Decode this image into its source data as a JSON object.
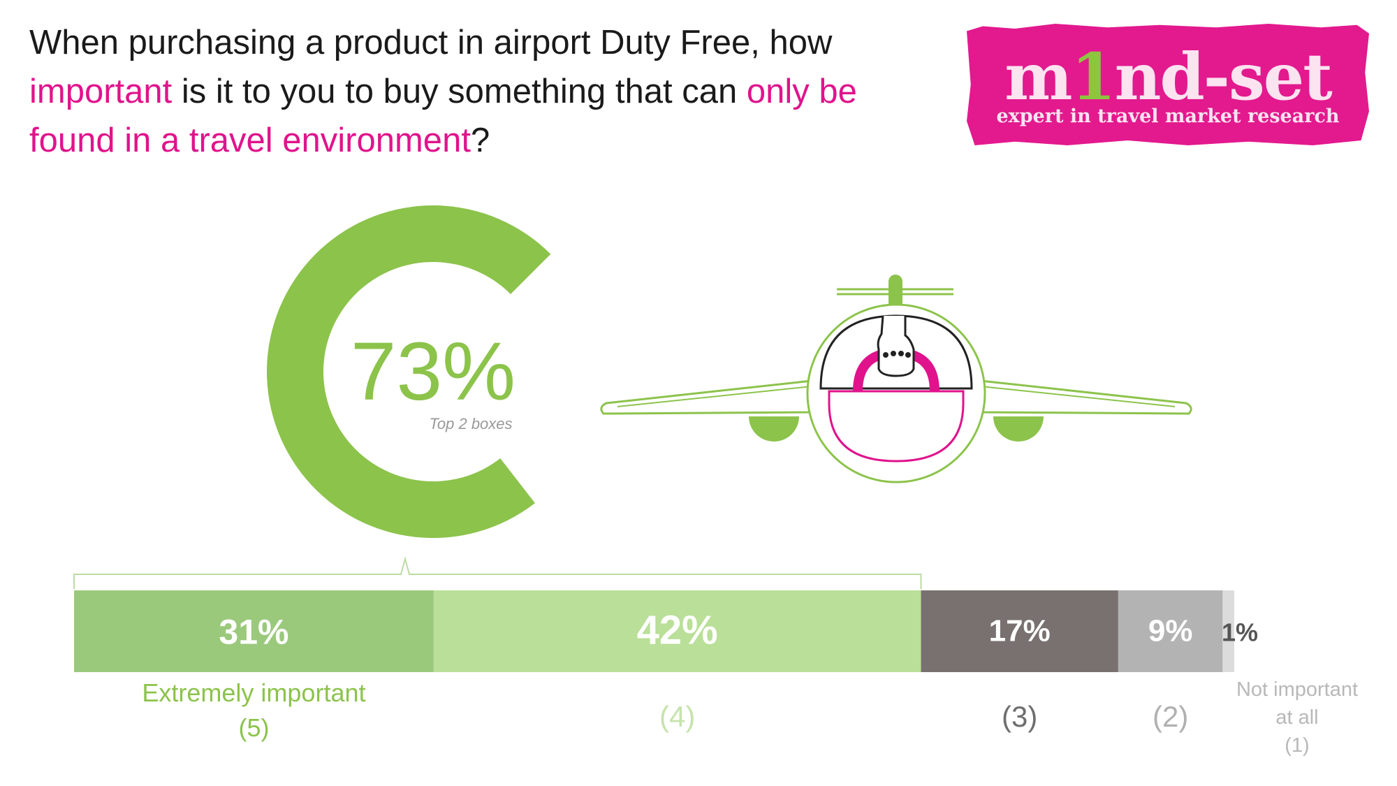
{
  "question": {
    "p1": "When purchasing a product in airport Duty Free, how",
    "h1": "important",
    "p2": " is it to you to buy something that can ",
    "h2": "only be",
    "h3": "found in a travel environment",
    "p3": "?"
  },
  "logo": {
    "word_a": "m",
    "word_b": "1",
    "word_c": "nd-set",
    "tagline": "expert in travel market research"
  },
  "colors": {
    "accent_pink": "#e0138c",
    "green_dark": "#8cc34b",
    "green_mid": "#9bc97c",
    "green_light": "#badf98",
    "grey_dark": "#787170",
    "grey_mid": "#b3b3b3",
    "grey_light": "#dcdcdc"
  },
  "chart_data": {
    "type": "bar",
    "orientation": "horizontal-stacked-100",
    "summary": {
      "value": "73%",
      "label": "Top 2 boxes",
      "percent": 73
    },
    "segments": [
      {
        "value": 31,
        "label": "31%",
        "category": "Extremely important\n(5)",
        "color": "#9bc97c",
        "text_color": "#ffffff",
        "cat_color": "#8cc34b"
      },
      {
        "value": 42,
        "label": "42%",
        "category": "(4)",
        "color": "#badf98",
        "text_color": "#ffffff",
        "cat_color": "#c6e3ac"
      },
      {
        "value": 17,
        "label": "17%",
        "category": "(3)",
        "color": "#787170",
        "text_color": "#ffffff",
        "cat_color": "#6e6e6e"
      },
      {
        "value": 9,
        "label": "9%",
        "category": "(2)",
        "color": "#b3b3b3",
        "text_color": "#ffffff",
        "cat_color": "#b0b0b0"
      },
      {
        "value": 1,
        "label": "1%",
        "category": "Not important\nat all\n(1)",
        "color": "#dcdcdc",
        "text_color": "#555555",
        "cat_color": "#b8b8b8"
      }
    ]
  }
}
